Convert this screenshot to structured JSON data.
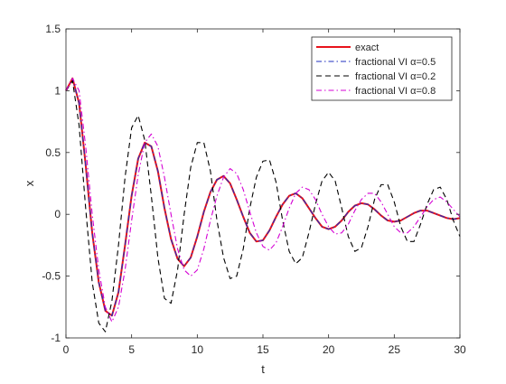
{
  "chart_data": {
    "type": "line",
    "xlabel": "t",
    "ylabel": "x",
    "xlim": [
      0,
      30
    ],
    "ylim": [
      -1,
      1.5
    ],
    "xticks": [
      0,
      5,
      10,
      15,
      20,
      25,
      30
    ],
    "yticks": [
      -1,
      -0.5,
      0,
      0.5,
      1,
      1.5
    ],
    "xtick_labels": [
      "0",
      "5",
      "10",
      "15",
      "20",
      "25",
      "30"
    ],
    "ytick_labels": [
      "-1",
      "-0.5",
      "0",
      "0.5",
      "1",
      "1.5"
    ],
    "grid": false,
    "legend_position": "top-right",
    "x": [
      0,
      0.5,
      1,
      1.5,
      2,
      2.5,
      3,
      3.5,
      4,
      4.5,
      5,
      5.5,
      6,
      6.5,
      7,
      7.5,
      8,
      8.5,
      9,
      9.5,
      10,
      10.5,
      11,
      11.5,
      12,
      12.5,
      13,
      13.5,
      14,
      14.5,
      15,
      15.5,
      16,
      16.5,
      17,
      17.5,
      18,
      18.5,
      19,
      19.5,
      20,
      20.5,
      21,
      21.5,
      22,
      22.5,
      23,
      23.5,
      24,
      24.5,
      25,
      25.5,
      26,
      26.5,
      27,
      27.5,
      28,
      28.5,
      29,
      29.5,
      30
    ],
    "series": [
      {
        "name": "exact",
        "color": "#e8131b",
        "dash": "solid",
        "values": [
          1.0,
          1.1,
          0.9,
          0.4,
          -0.15,
          -0.55,
          -0.78,
          -0.82,
          -0.63,
          -0.25,
          0.15,
          0.45,
          0.58,
          0.55,
          0.35,
          0.05,
          -0.2,
          -0.36,
          -0.42,
          -0.35,
          -0.18,
          0.02,
          0.18,
          0.28,
          0.31,
          0.25,
          0.12,
          -0.02,
          -0.15,
          -0.22,
          -0.21,
          -0.13,
          -0.02,
          0.08,
          0.15,
          0.17,
          0.13,
          0.05,
          -0.03,
          -0.1,
          -0.12,
          -0.1,
          -0.05,
          0.02,
          0.07,
          0.09,
          0.08,
          0.04,
          -0.01,
          -0.05,
          -0.06,
          -0.05,
          -0.02,
          0.01,
          0.03,
          0.03,
          0.01,
          -0.01,
          -0.03,
          -0.04,
          -0.03
        ]
      },
      {
        "name": "fractional VI α=0.5",
        "color": "#1f2fbf",
        "dash": "dashdot",
        "values": [
          1.0,
          1.1,
          0.9,
          0.4,
          -0.15,
          -0.55,
          -0.78,
          -0.82,
          -0.63,
          -0.25,
          0.15,
          0.45,
          0.58,
          0.55,
          0.35,
          0.05,
          -0.2,
          -0.36,
          -0.42,
          -0.35,
          -0.18,
          0.02,
          0.18,
          0.28,
          0.31,
          0.25,
          0.12,
          -0.02,
          -0.15,
          -0.22,
          -0.21,
          -0.13,
          -0.02,
          0.08,
          0.15,
          0.17,
          0.13,
          0.05,
          -0.03,
          -0.1,
          -0.12,
          -0.1,
          -0.05,
          0.02,
          0.07,
          0.09,
          0.08,
          0.04,
          -0.01,
          -0.05,
          -0.06,
          -0.05,
          -0.02,
          0.01,
          0.03,
          0.03,
          0.01,
          -0.01,
          -0.03,
          -0.04,
          -0.03
        ]
      },
      {
        "name": "fractional VI α=0.2",
        "color": "#000000",
        "dash": "dashed",
        "values": [
          1.0,
          1.08,
          0.72,
          0.05,
          -0.55,
          -0.88,
          -0.95,
          -0.7,
          -0.25,
          0.3,
          0.7,
          0.8,
          0.6,
          0.15,
          -0.35,
          -0.68,
          -0.72,
          -0.45,
          0.0,
          0.38,
          0.58,
          0.58,
          0.35,
          -0.05,
          -0.35,
          -0.52,
          -0.5,
          -0.28,
          0.05,
          0.3,
          0.43,
          0.44,
          0.26,
          -0.05,
          -0.3,
          -0.4,
          -0.35,
          -0.15,
          0.08,
          0.27,
          0.34,
          0.27,
          0.05,
          -0.18,
          -0.3,
          -0.27,
          -0.1,
          0.12,
          0.24,
          0.24,
          0.1,
          -0.1,
          -0.22,
          -0.22,
          -0.08,
          0.08,
          0.2,
          0.22,
          0.12,
          -0.05,
          -0.18
        ]
      },
      {
        "name": "fractional VI α=0.8",
        "color": "#d400d4",
        "dash": "dashdot",
        "values": [
          1.0,
          1.1,
          1.0,
          0.55,
          0.0,
          -0.45,
          -0.75,
          -0.87,
          -0.75,
          -0.45,
          -0.05,
          0.32,
          0.58,
          0.65,
          0.55,
          0.3,
          0.0,
          -0.28,
          -0.45,
          -0.5,
          -0.45,
          -0.28,
          -0.05,
          0.15,
          0.3,
          0.37,
          0.33,
          0.2,
          0.02,
          -0.15,
          -0.26,
          -0.29,
          -0.23,
          -0.1,
          0.05,
          0.17,
          0.22,
          0.2,
          0.12,
          0.0,
          -0.1,
          -0.16,
          -0.15,
          -0.08,
          0.03,
          0.12,
          0.17,
          0.17,
          0.1,
          0.0,
          -0.1,
          -0.15,
          -0.15,
          -0.1,
          -0.02,
          0.06,
          0.12,
          0.14,
          0.1,
          0.04,
          -0.02
        ]
      }
    ]
  }
}
